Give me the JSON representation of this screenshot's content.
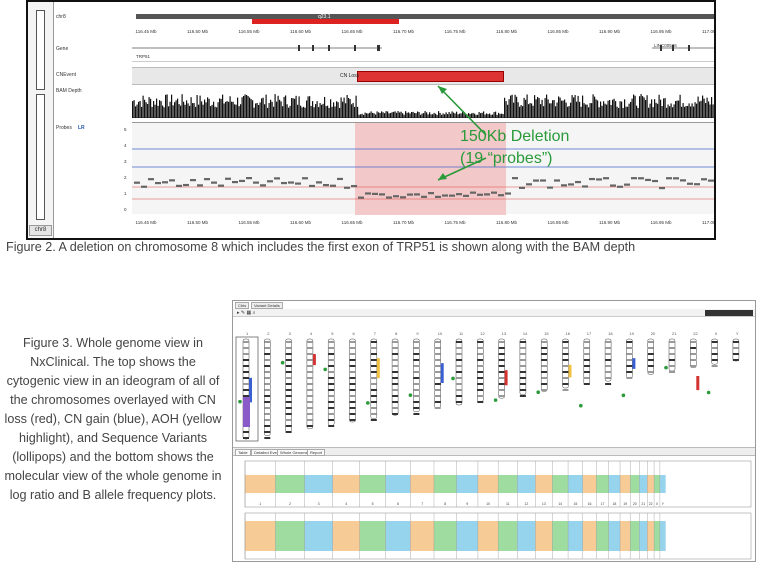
{
  "figure2": {
    "side_footer": "chr8",
    "track_labels": {
      "chromosome": "chr8",
      "genes": "Gene",
      "cn_event": "CNEvent",
      "bam_depth": "BAM Depth",
      "probes": "Probes"
    },
    "probe_mode": "LR",
    "highlight_label": "q23.1",
    "gene_left": "TRP51",
    "gene_right": "LINC00536",
    "cn_label": "CN Loss",
    "coordinates": [
      "116.45 Mb",
      "116.50 Mb",
      "116.55 Mb",
      "116.60 Mb",
      "116.65 Mb",
      "116.70 Mb",
      "116.75 Mb",
      "116.80 Mb",
      "116.85 Mb",
      "116.90 Mb",
      "116.95 Mb",
      "117.00 Mb"
    ],
    "y_ticks": [
      "5",
      "4",
      "3",
      "2",
      "1",
      "0"
    ],
    "annotation_line1": "150Kb Deletion",
    "annotation_line2": "(19 “probes”)",
    "annotation_color": "#2a9a3a",
    "loss_color": "#d33333",
    "caption": "Figure 2. A deletion on chromosome 8 which includes the first exon of TRP51 is shown along with the BAM depth"
  },
  "figure3": {
    "caption": "Figure 3. Whole genome view in NxClinical. The top shows the cytogenic view in an ideogram of all of the chromosomes overlayed with CN loss (red), CN gain (blue), AOH (yellow highlight), and Sequence Variants (lollipops) and the bottom shows the molecular view of the whole genome in log ratio and B allele frequency plots.",
    "top_tabs": [
      "Ctrls",
      "Variant Details"
    ],
    "bottom_tabs": [
      "Table",
      "Detailed Event",
      "Whole Genome",
      "Report"
    ],
    "chromosomes": [
      "1",
      "2",
      "3",
      "4",
      "5",
      "6",
      "7",
      "8",
      "9",
      "10",
      "11",
      "12",
      "13",
      "14",
      "15",
      "16",
      "17",
      "18",
      "19",
      "20",
      "21",
      "22",
      "X",
      "Y"
    ],
    "colors": {
      "loss": "#d33333",
      "gain": "#3a5fd0",
      "aoh": "#f0c040"
    }
  }
}
